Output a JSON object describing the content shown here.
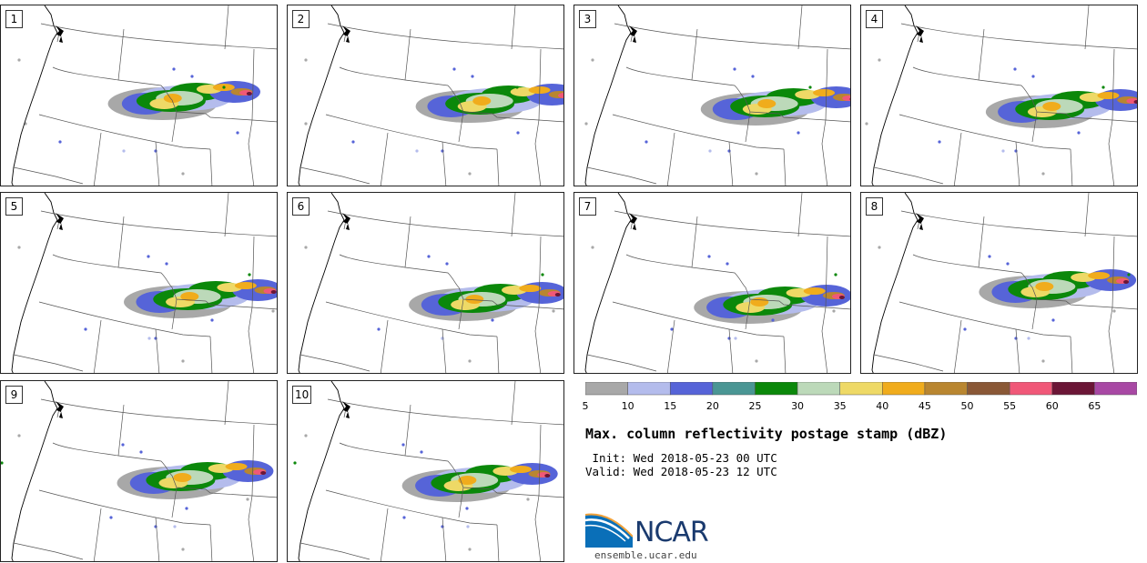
{
  "title": "Max. column reflectivity postage stamp (dBZ)",
  "init": " Init: Wed 2018-05-23 00 UTC",
  "valid": "Valid: Wed 2018-05-23 12 UTC",
  "members": [
    "1",
    "2",
    "3",
    "4",
    "5",
    "6",
    "7",
    "8",
    "9",
    "10"
  ],
  "colorbar": {
    "ticks": [
      "5",
      "10",
      "15",
      "20",
      "25",
      "30",
      "35",
      "40",
      "45",
      "50",
      "55",
      "60",
      "65"
    ],
    "colors": [
      "#a8a8a8",
      "#b4bcec",
      "#5664d8",
      "#4a9694",
      "#0b880a",
      "#bcd9b9",
      "#eed966",
      "#f0ac1c",
      "#b98630",
      "#8a5836",
      "#f05878",
      "#6b1636",
      "#a848a4"
    ]
  },
  "logo": {
    "text": "NCAR",
    "url": "ensemble.ucar.edu"
  }
}
